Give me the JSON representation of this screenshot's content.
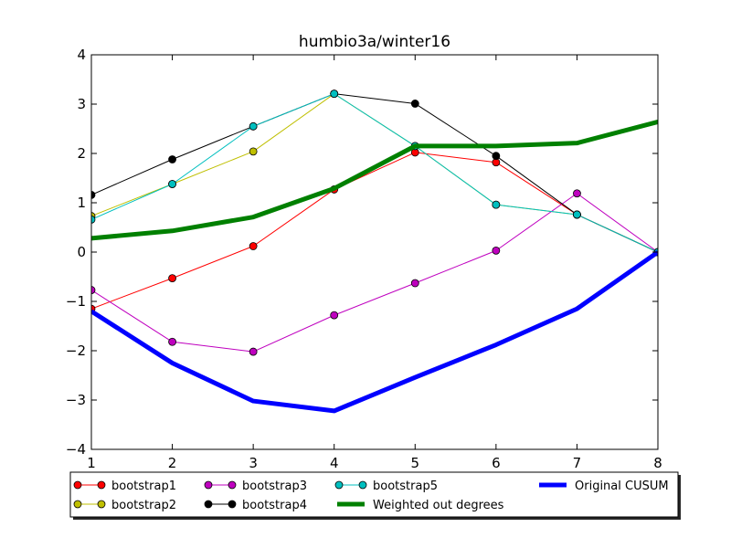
{
  "chart_data": {
    "type": "line",
    "title": "humbio3a/winter16",
    "xlabel": "",
    "ylabel": "",
    "x": [
      1,
      2,
      3,
      4,
      5,
      6,
      7,
      8
    ],
    "xlim": [
      1,
      8
    ],
    "ylim": [
      -4,
      4
    ],
    "xticks": [
      "1",
      "2",
      "3",
      "4",
      "5",
      "6",
      "7",
      "8"
    ],
    "yticks": [
      "−4",
      "−3",
      "−2",
      "−1",
      "0",
      "1",
      "2",
      "3",
      "4"
    ],
    "grid": false,
    "legend_position": "bottom",
    "series": [
      {
        "name": "bootstrap1",
        "color": "#ff0000",
        "marker": true,
        "width": 1,
        "values": [
          -1.15,
          -0.53,
          0.12,
          1.27,
          2.02,
          1.82,
          0.76,
          0.0
        ]
      },
      {
        "name": "bootstrap2",
        "color": "#bfbf00",
        "marker": true,
        "width": 1,
        "values": [
          0.73,
          1.38,
          2.04,
          3.21,
          2.15,
          0.96,
          0.76,
          0.0
        ]
      },
      {
        "name": "bootstrap3",
        "color": "#bf00bf",
        "marker": true,
        "width": 1,
        "values": [
          -0.77,
          -1.82,
          -2.02,
          -1.28,
          -0.63,
          0.03,
          1.19,
          0.0
        ]
      },
      {
        "name": "bootstrap4",
        "color": "#000000",
        "marker": true,
        "width": 1,
        "values": [
          1.16,
          1.88,
          2.55,
          3.21,
          3.01,
          1.95,
          0.76,
          0.0
        ]
      },
      {
        "name": "bootstrap5",
        "color": "#00bfbf",
        "marker": true,
        "width": 1,
        "values": [
          0.66,
          1.38,
          2.55,
          3.21,
          2.15,
          0.96,
          0.76,
          0.0
        ]
      },
      {
        "name": "Weighted out degrees",
        "color": "#008000",
        "marker": false,
        "width": 5,
        "values": [
          0.28,
          0.43,
          0.71,
          1.29,
          2.15,
          2.15,
          2.21,
          2.64
        ]
      },
      {
        "name": "Original CUSUM",
        "color": "#0000ff",
        "marker": false,
        "width": 5,
        "values": [
          -1.2,
          -2.25,
          -3.02,
          -3.22,
          -2.54,
          -1.88,
          -1.15,
          0.0
        ]
      }
    ]
  }
}
